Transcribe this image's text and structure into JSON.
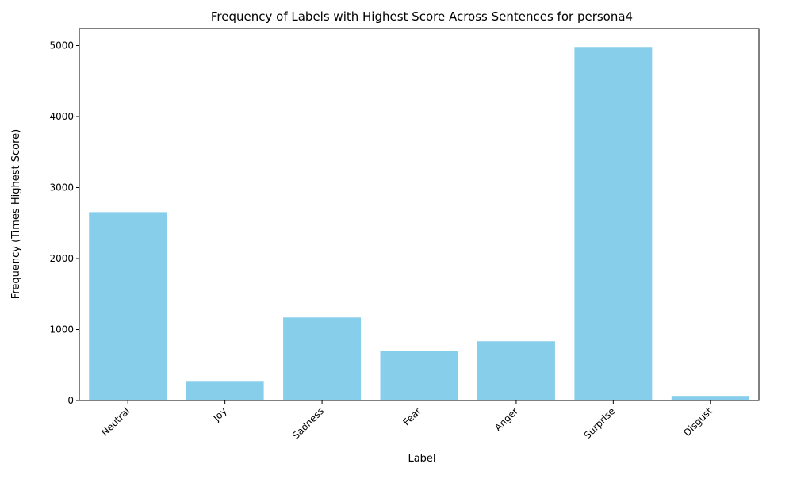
{
  "chart_data": {
    "type": "bar",
    "title": "Frequency of Labels with Highest Score Across Sentences for persona4",
    "xlabel": "Label",
    "ylabel": "Frequency (Times Highest Score)",
    "categories": [
      "Neutral",
      "Joy",
      "Sadness",
      "Fear",
      "Anger",
      "Surprise",
      "Disgust"
    ],
    "values": [
      2655,
      265,
      1170,
      700,
      835,
      4980,
      65
    ],
    "ylim": [
      0,
      5240
    ],
    "yticks": [
      0,
      1000,
      2000,
      3000,
      4000,
      5000
    ],
    "bar_color": "#87ceeb",
    "grid": false,
    "legend": "none"
  }
}
